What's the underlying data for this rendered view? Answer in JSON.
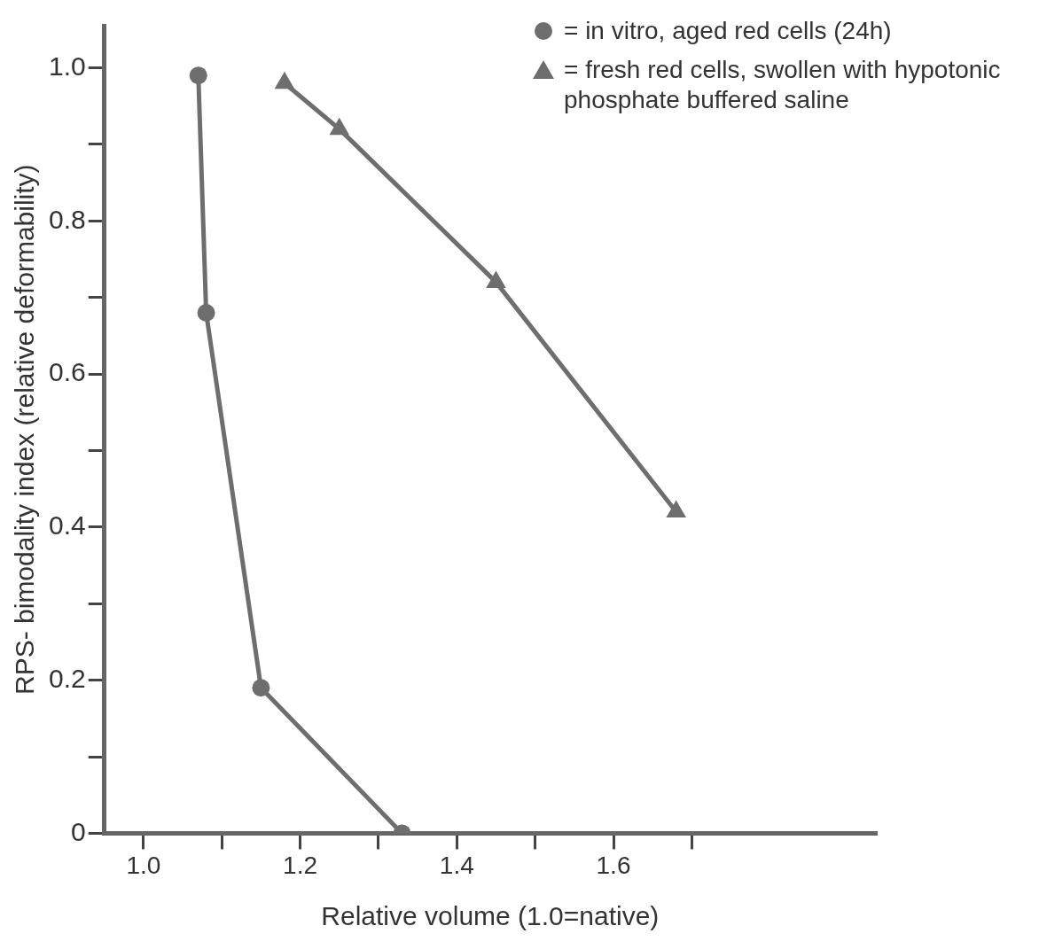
{
  "chart_data": {
    "type": "line",
    "xlabel": "Relative volume (1.0=native)",
    "ylabel": "RPS- bimodality index (relative deformability)",
    "xlim": [
      0.95,
      1.935
    ],
    "ylim": [
      0,
      1.055
    ],
    "xticks": [
      {
        "value": 1.0,
        "label": "1.0"
      },
      {
        "value": 1.1,
        "label": null
      },
      {
        "value": 1.2,
        "label": "1.2"
      },
      {
        "value": 1.3,
        "label": null
      },
      {
        "value": 1.4,
        "label": "1.4"
      },
      {
        "value": 1.5,
        "label": null
      },
      {
        "value": 1.6,
        "label": "1.6"
      },
      {
        "value": 1.7,
        "label": null
      }
    ],
    "yticks": [
      0,
      {
        "value": 0.1,
        "label": null
      },
      0.2,
      {
        "value": 0.3,
        "label": null
      },
      0.4,
      {
        "value": 0.5,
        "label": null
      },
      0.6,
      {
        "value": 0.7,
        "label": null
      },
      0.8,
      {
        "value": 0.9,
        "label": null
      },
      {
        "value": 1.0,
        "label": "1.0"
      }
    ],
    "grid": false,
    "legend": "top right",
    "line_style": "solid",
    "series": [
      {
        "name": "= in vitro, aged red cells (24h)",
        "color": "#6e6e6e",
        "marker": "circle",
        "x": [
          1.07,
          1.08,
          1.15,
          1.33
        ],
        "values": [
          0.99,
          0.68,
          0.19,
          0
        ]
      },
      {
        "name": "= fresh red cells, swollen with hypotonic phosphate buffered saline",
        "color": "#6e6e6e",
        "marker": "triangle",
        "x": [
          1.18,
          1.25,
          1.45,
          1.68
        ],
        "values": [
          0.98,
          0.92,
          0.72,
          0.42
        ]
      }
    ]
  }
}
